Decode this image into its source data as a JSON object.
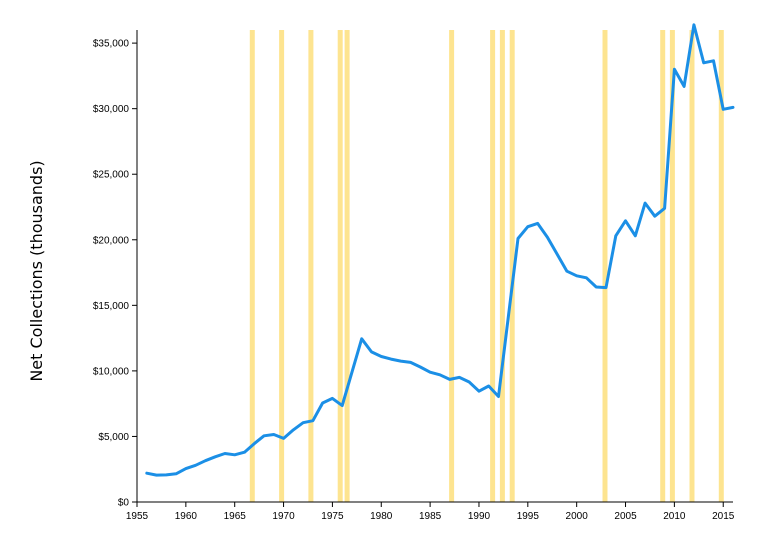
{
  "chart_data": {
    "type": "line",
    "title": "",
    "xlabel": "",
    "ylabel": "Net Collections (thousands)",
    "xlim": [
      1955,
      2016
    ],
    "ylim": [
      0,
      36000
    ],
    "grid": false,
    "legend": "none",
    "x_ticks": [
      1955,
      1960,
      1965,
      1970,
      1975,
      1980,
      1985,
      1990,
      1995,
      2000,
      2005,
      2010,
      2015
    ],
    "x_tick_labels": [
      "1955",
      "1960",
      "1965",
      "1970",
      "1975",
      "1980",
      "1985",
      "1990",
      "1995",
      "2000",
      "2005",
      "2010",
      "2015"
    ],
    "y_ticks": [
      0,
      5000,
      10000,
      15000,
      20000,
      25000,
      30000,
      35000
    ],
    "y_tick_labels": [
      "$0",
      "$5,000",
      "$10,000",
      "$15,000",
      "$20,000",
      "$25,000",
      "$30,000",
      "$35,000"
    ],
    "highlight_years": [
      1966.8,
      1969.8,
      1972.8,
      1975.8,
      1976.5,
      1987.2,
      1991.4,
      1992.4,
      1993.4,
      2002.9,
      2008.8,
      2009.8,
      2011.8,
      2014.8
    ],
    "highlight_color": "#fde38a",
    "line_color": "#1b8fe6",
    "series": [
      {
        "x": [
          1956,
          1957,
          1958,
          1959,
          1960,
          1961,
          1962,
          1963,
          1964,
          1965,
          1966,
          1967,
          1968,
          1969,
          1970,
          1971,
          1972,
          1973,
          1974,
          1975,
          1976,
          1978,
          1979,
          1980,
          1981,
          1982,
          1983,
          1984,
          1985,
          1986,
          1987,
          1988,
          1989,
          1990,
          1991,
          1992,
          1994,
          1995,
          1996,
          1997,
          1999,
          2000,
          2001,
          2002,
          2003,
          2004,
          2005,
          2006,
          2007,
          2008,
          2009,
          2010,
          2011,
          2012,
          2013,
          2014,
          2015,
          2016
        ],
        "values": [
          2200,
          2050,
          2070,
          2150,
          2550,
          2800,
          3150,
          3450,
          3700,
          3600,
          3800,
          4450,
          5050,
          5150,
          4850,
          5500,
          6050,
          6200,
          7550,
          7900,
          7350,
          12450,
          11450,
          11100,
          10900,
          10750,
          10650,
          10300,
          9900,
          9700,
          9350,
          9500,
          9150,
          8450,
          8850,
          8050,
          20100,
          21000,
          21250,
          20200,
          17600,
          17250,
          17100,
          16400,
          16350,
          20300,
          21450,
          20300,
          22800,
          21800,
          22400,
          33000,
          31700,
          36400,
          33500,
          33650,
          29950,
          30100
        ]
      }
    ]
  }
}
